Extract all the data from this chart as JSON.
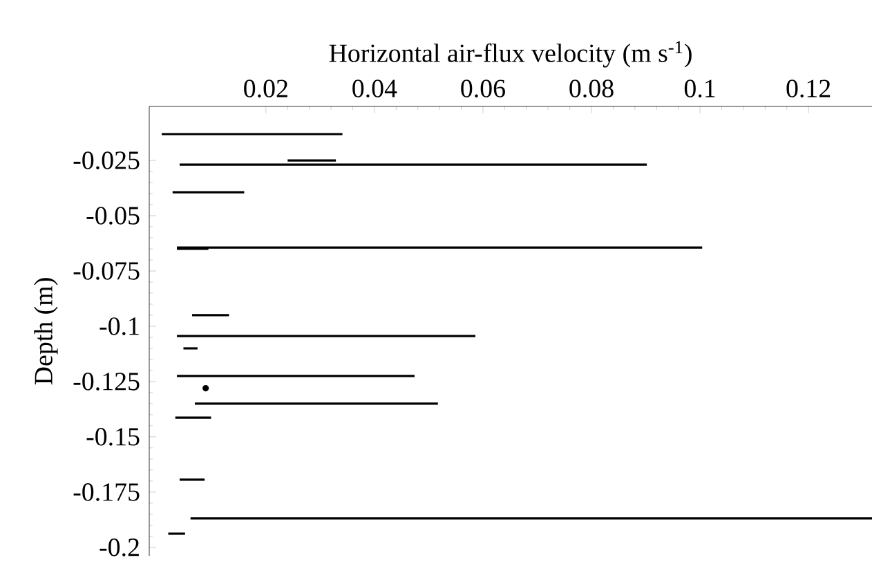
{
  "chart_data": {
    "type": "line",
    "xlabel": "Horizontal air-flux velocity (m s$^{-1}$)",
    "ylabel": "Depth (m)",
    "xlim": [
      -0.0015,
      0.1317
    ],
    "ylim": [
      -0.2038,
      -0.0006
    ],
    "xticks": [
      0.02,
      0.04,
      0.06,
      0.08,
      0.1,
      0.12
    ],
    "yticks": [
      -0.025,
      -0.05,
      -0.075,
      -0.1,
      -0.125,
      -0.15,
      -0.175,
      -0.2
    ],
    "marker": "none",
    "line_style": "solid",
    "series": [
      {
        "color": "#000000",
        "x": [
          0.0008,
          0.0341
        ],
        "values": [
          -0.0131,
          -0.0131
        ]
      },
      {
        "color": "#000000",
        "x": [
          0.0041,
          0.0902
        ],
        "values": [
          -0.0269,
          -0.0269
        ]
      },
      {
        "color": "#000000",
        "x": [
          0.024,
          0.0329
        ],
        "values": [
          -0.025,
          -0.025
        ]
      },
      {
        "color": "#000000",
        "x": [
          0.0028,
          0.016
        ],
        "values": [
          -0.0394,
          -0.0394
        ]
      },
      {
        "color": "#000000",
        "x": [
          0.0036,
          0.1004
        ],
        "values": [
          -0.0644,
          -0.0644
        ]
      },
      {
        "color": "#000000",
        "x": [
          0.0036,
          0.0094
        ],
        "values": [
          -0.065,
          -0.065
        ]
      },
      {
        "color": "#000000",
        "x": [
          0.0064,
          0.0132
        ],
        "values": [
          -0.095,
          -0.095
        ]
      },
      {
        "color": "#000000",
        "x": [
          0.0036,
          0.0586
        ],
        "values": [
          -0.1044,
          -0.1044
        ]
      },
      {
        "color": "#000000",
        "x": [
          0.0048,
          0.0074
        ],
        "values": [
          -0.11,
          -0.11
        ]
      },
      {
        "color": "#000000",
        "x": [
          0.0036,
          0.0474
        ],
        "values": [
          -0.1225,
          -0.1225
        ]
      },
      {
        "type": "scatter",
        "color": "#000000",
        "x": [
          0.0089
        ],
        "values": [
          -0.128
        ]
      },
      {
        "color": "#000000",
        "x": [
          0.0069,
          0.0517
        ],
        "values": [
          -0.135,
          -0.135
        ]
      },
      {
        "color": "#000000",
        "x": [
          0.0033,
          0.0099
        ],
        "values": [
          -0.1413,
          -0.1413
        ]
      },
      {
        "color": "#000000",
        "x": [
          0.0041,
          0.0087
        ],
        "values": [
          -0.1694,
          -0.1694
        ]
      },
      {
        "color": "#000000",
        "x": [
          0.0061,
          0.1317
        ],
        "values": [
          -0.1869,
          -0.1869
        ]
      },
      {
        "color": "#000000",
        "x": [
          0.002,
          0.0051
        ],
        "values": [
          -0.1938,
          -0.1938
        ]
      }
    ]
  }
}
